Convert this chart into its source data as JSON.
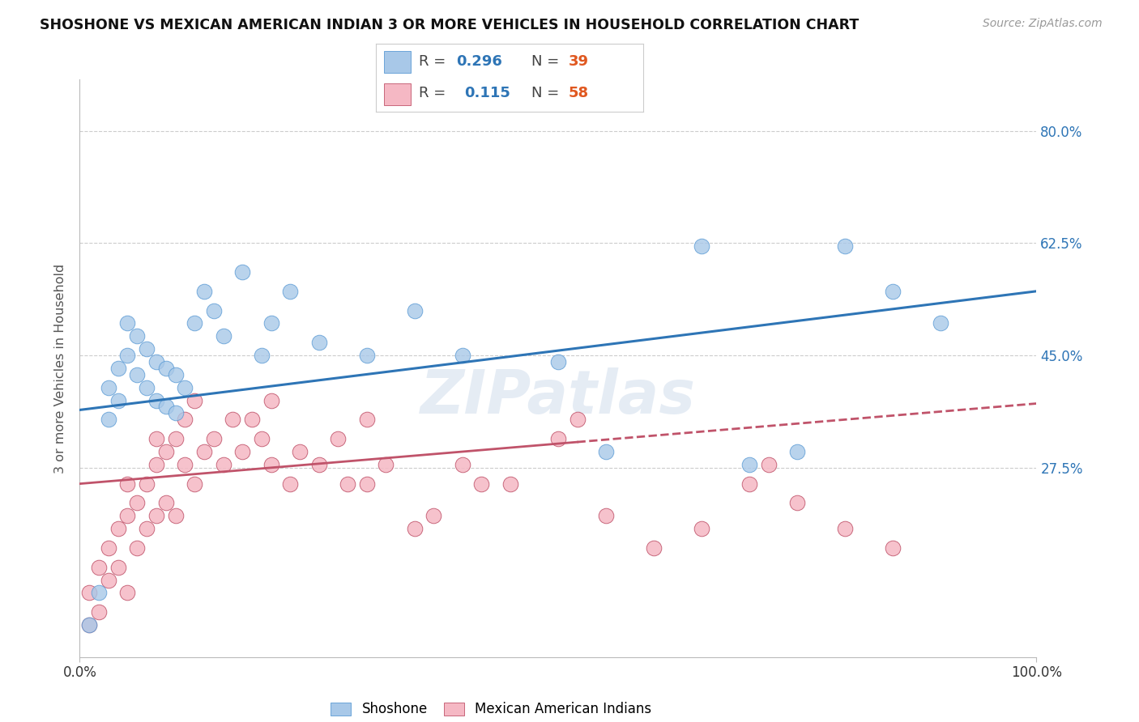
{
  "title": "SHOSHONE VS MEXICAN AMERICAN INDIAN 3 OR MORE VEHICLES IN HOUSEHOLD CORRELATION CHART",
  "source": "Source: ZipAtlas.com",
  "ylabel": "3 or more Vehicles in Household",
  "xlim": [
    0,
    100
  ],
  "ylim": [
    -2,
    88
  ],
  "yticks": [
    27.5,
    45.0,
    62.5,
    80.0
  ],
  "blue_color": "#a8c8e8",
  "pink_color": "#f5b8c4",
  "line_blue": "#2e75b6",
  "line_pink": "#c0536a",
  "R_blue": 0.296,
  "N_blue": 39,
  "R_pink": 0.115,
  "N_pink": 58,
  "legend_label1": "Shoshone",
  "legend_label2": "Mexican American Indians",
  "watermark": "ZIPatlas",
  "pink_solid_end": 52,
  "shoshone_x": [
    1,
    2,
    3,
    3,
    4,
    4,
    5,
    5,
    6,
    6,
    7,
    7,
    8,
    8,
    9,
    9,
    10,
    10,
    11,
    12,
    13,
    14,
    15,
    17,
    19,
    20,
    22,
    25,
    30,
    35,
    40,
    50,
    55,
    65,
    70,
    75,
    80,
    85,
    90
  ],
  "shoshone_y": [
    3,
    8,
    35,
    40,
    38,
    43,
    45,
    50,
    42,
    48,
    40,
    46,
    38,
    44,
    37,
    43,
    36,
    42,
    40,
    50,
    55,
    52,
    48,
    58,
    45,
    50,
    55,
    47,
    45,
    52,
    45,
    44,
    30,
    62,
    28,
    30,
    62,
    55,
    50
  ],
  "mexican_x": [
    1,
    1,
    2,
    2,
    3,
    3,
    4,
    4,
    5,
    5,
    5,
    6,
    6,
    7,
    7,
    8,
    8,
    8,
    9,
    9,
    10,
    10,
    11,
    11,
    12,
    12,
    13,
    14,
    15,
    16,
    17,
    18,
    19,
    20,
    20,
    22,
    23,
    25,
    27,
    28,
    30,
    30,
    32,
    35,
    37,
    40,
    42,
    45,
    50,
    52,
    55,
    60,
    65,
    70,
    72,
    75,
    80,
    85
  ],
  "mexican_y": [
    3,
    8,
    5,
    12,
    10,
    15,
    12,
    18,
    8,
    20,
    25,
    15,
    22,
    18,
    25,
    20,
    28,
    32,
    22,
    30,
    20,
    32,
    28,
    35,
    25,
    38,
    30,
    32,
    28,
    35,
    30,
    35,
    32,
    28,
    38,
    25,
    30,
    28,
    32,
    25,
    25,
    35,
    28,
    18,
    20,
    28,
    25,
    25,
    32,
    35,
    20,
    15,
    18,
    25,
    28,
    22,
    18,
    15
  ]
}
